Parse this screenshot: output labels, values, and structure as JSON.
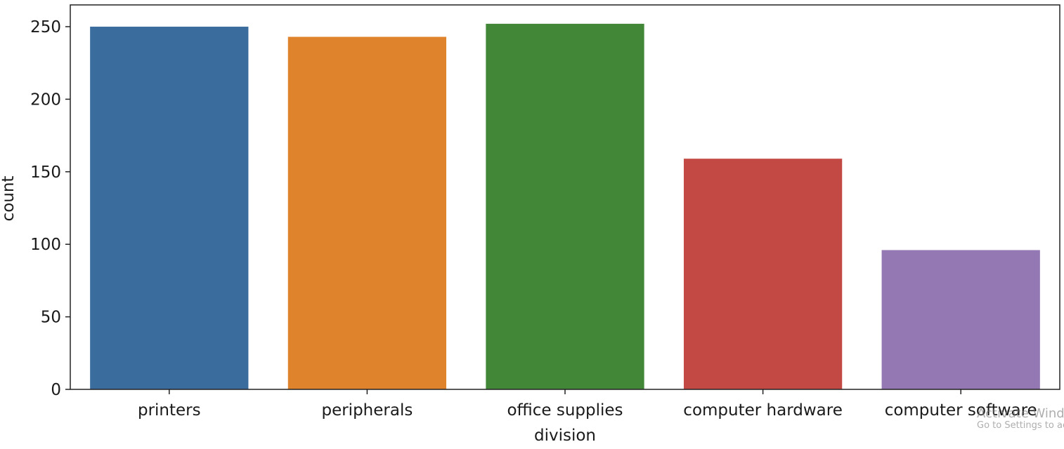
{
  "chart_data": {
    "type": "bar",
    "categories": [
      "printers",
      "peripherals",
      "office supplies",
      "computer hardware",
      "computer software"
    ],
    "values": [
      250,
      243,
      252,
      159,
      96
    ],
    "colors": [
      "#3a6d9e",
      "#e0832d",
      "#428638",
      "#c34a44",
      "#9478b4"
    ],
    "title": "",
    "xlabel": "division",
    "ylabel": "count",
    "ylim": [
      0,
      265
    ],
    "yticks": [
      0,
      50,
      100,
      150,
      200,
      250
    ],
    "grid": false,
    "legend": "none"
  },
  "watermark": {
    "title": "Activate Windows",
    "subtitle": "Go to Settings to activate Windows."
  }
}
